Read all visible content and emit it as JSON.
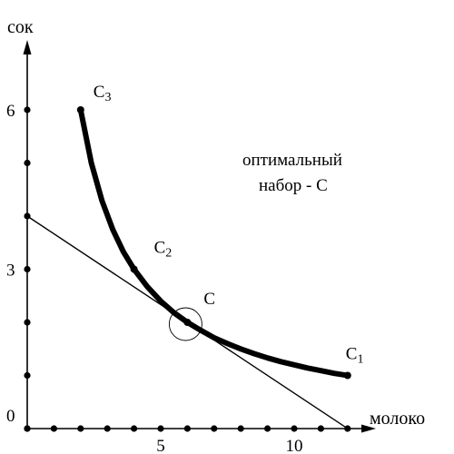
{
  "chart_data": {
    "type": "line",
    "title": "",
    "xlabel": "молоко",
    "ylabel": "сок",
    "xlim": [
      0,
      12
    ],
    "ylim": [
      0,
      7
    ],
    "grid": false,
    "x_ticks": [
      0,
      1,
      2,
      3,
      4,
      5,
      6,
      7,
      8,
      9,
      10,
      11,
      12
    ],
    "y_ticks": [
      0,
      1,
      2,
      3,
      4,
      5,
      6
    ],
    "x_tick_labels": [
      {
        "value": 5,
        "label": "5"
      },
      {
        "value": 10,
        "label": "10"
      }
    ],
    "y_tick_labels": [
      {
        "value": 0,
        "label": "0"
      },
      {
        "value": 3,
        "label": "3"
      },
      {
        "value": 6,
        "label": "6"
      }
    ],
    "series": [
      {
        "kind": "indifference-curve",
        "x": [
          2,
          2.4,
          2.8,
          3.2,
          3.6,
          4,
          4.5,
          5,
          5.5,
          6,
          6.5,
          7,
          7.5,
          8,
          8.5,
          9,
          9.5,
          10,
          10.5,
          11,
          11.5,
          12
        ],
        "y": [
          6,
          5.0,
          4.29,
          3.75,
          3.33,
          3,
          2.67,
          2.4,
          2.18,
          2,
          1.85,
          1.71,
          1.6,
          1.5,
          1.41,
          1.33,
          1.26,
          1.2,
          1.14,
          1.09,
          1.04,
          1.0
        ]
      },
      {
        "kind": "budget-line",
        "x": [
          0,
          12
        ],
        "y": [
          4,
          0
        ]
      }
    ],
    "points": [
      {
        "name": "C3",
        "label_main": "C",
        "label_sub": "3",
        "x": 2,
        "y": 6
      },
      {
        "name": "C2",
        "label_main": "C",
        "label_sub": "2",
        "x": 4,
        "y": 3
      },
      {
        "name": "C",
        "label_main": "C",
        "label_sub": "",
        "x": 6,
        "y": 2
      },
      {
        "name": "C1",
        "label_main": "C",
        "label_sub": "1",
        "x": 12,
        "y": 1
      }
    ],
    "optimum": {
      "x": 6,
      "y": 2
    },
    "annotation": {
      "line1": "оптимальный",
      "line2": "набор - С"
    }
  }
}
